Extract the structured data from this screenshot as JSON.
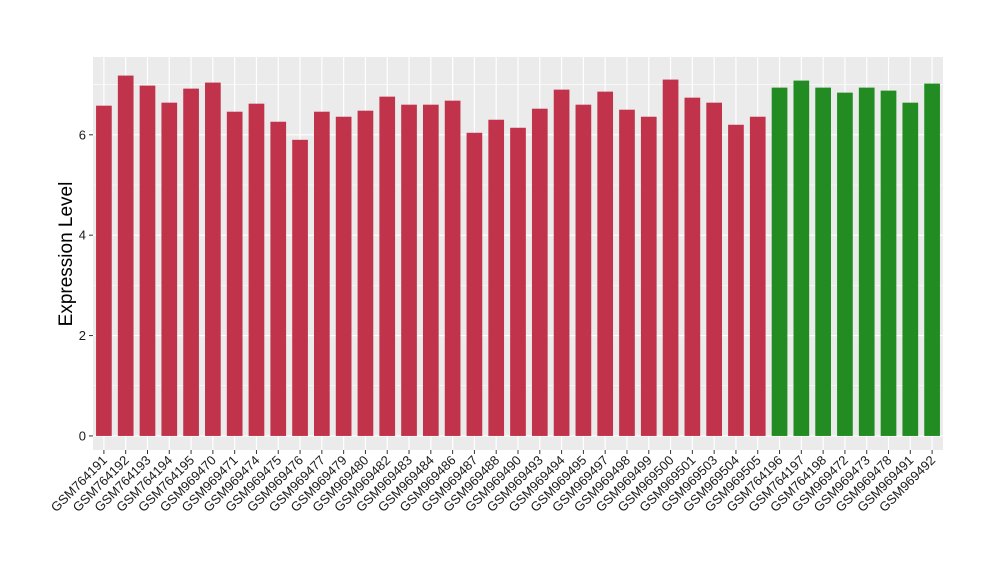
{
  "chart_data": {
    "type": "bar",
    "title": "",
    "xlabel": "",
    "ylabel": "Expression Level",
    "ylim": [
      -0.28,
      7.55
    ],
    "yticks": [
      0,
      2,
      4,
      6
    ],
    "grid": true,
    "colors": {
      "panel": "#ebebeb",
      "grid": "#ffffff",
      "group_a": "#c1334a",
      "group_b": "#228b22"
    },
    "categories": [
      "GSM764191",
      "GSM764192",
      "GSM764193",
      "GSM764194",
      "GSM764195",
      "GSM969470",
      "GSM969471",
      "GSM969474",
      "GSM969475",
      "GSM969476",
      "GSM969477",
      "GSM969479",
      "GSM969480",
      "GSM969482",
      "GSM969483",
      "GSM969484",
      "GSM969486",
      "GSM969487",
      "GSM969488",
      "GSM969490",
      "GSM969493",
      "GSM969494",
      "GSM969495",
      "GSM969497",
      "GSM969498",
      "GSM969499",
      "GSM969500",
      "GSM969501",
      "GSM969503",
      "GSM969504",
      "GSM969505",
      "GSM764196",
      "GSM764197",
      "GSM764198",
      "GSM969472",
      "GSM969473",
      "GSM969478",
      "GSM969491",
      "GSM969492"
    ],
    "values": [
      6.58,
      7.18,
      6.98,
      6.64,
      6.92,
      7.04,
      6.46,
      6.62,
      6.26,
      5.9,
      6.46,
      6.36,
      6.48,
      6.76,
      6.6,
      6.6,
      6.68,
      6.04,
      6.3,
      6.14,
      6.52,
      6.9,
      6.6,
      6.86,
      6.5,
      6.36,
      7.1,
      6.74,
      6.64,
      6.2,
      6.36,
      6.94,
      7.08,
      6.94,
      6.84,
      6.94,
      6.88,
      6.64,
      7.02
    ],
    "groups": [
      "a",
      "a",
      "a",
      "a",
      "a",
      "a",
      "a",
      "a",
      "a",
      "a",
      "a",
      "a",
      "a",
      "a",
      "a",
      "a",
      "a",
      "a",
      "a",
      "a",
      "a",
      "a",
      "a",
      "a",
      "a",
      "a",
      "a",
      "a",
      "a",
      "a",
      "a",
      "b",
      "b",
      "b",
      "b",
      "b",
      "b",
      "b",
      "b"
    ]
  }
}
